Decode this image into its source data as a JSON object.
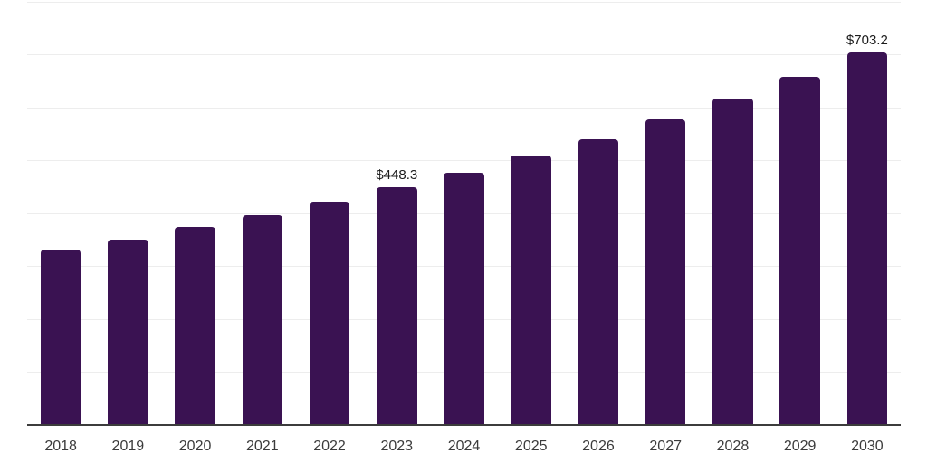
{
  "chart_data": {
    "type": "bar",
    "title": "",
    "categories": [
      "2018",
      "2019",
      "2020",
      "2021",
      "2022",
      "2023",
      "2024",
      "2025",
      "2026",
      "2027",
      "2028",
      "2029",
      "2030"
    ],
    "values": [
      331.0,
      350.9,
      373.5,
      397.0,
      421.4,
      448.3,
      477.2,
      508.8,
      540.3,
      576.7,
      615.9,
      658.1,
      703.2
    ],
    "point_labels": [
      "",
      "",
      "",
      "",
      "",
      "$448.3",
      "",
      "",
      "",
      "",
      "",
      "",
      "$703.2"
    ],
    "xlabel": "",
    "ylabel": "",
    "ylim": [
      0,
      800
    ],
    "gridline_interval": 100,
    "grid": true,
    "y_tick_labels_visible": false,
    "legend_position": "none",
    "colors": {
      "bar": "#3A1252",
      "gridline": "#EDEDED",
      "axis_line": "#3C3C3C",
      "tick_label": "#3B3B3B",
      "value_label": "#1C1C1C",
      "background": "#FFFFFF"
    }
  }
}
